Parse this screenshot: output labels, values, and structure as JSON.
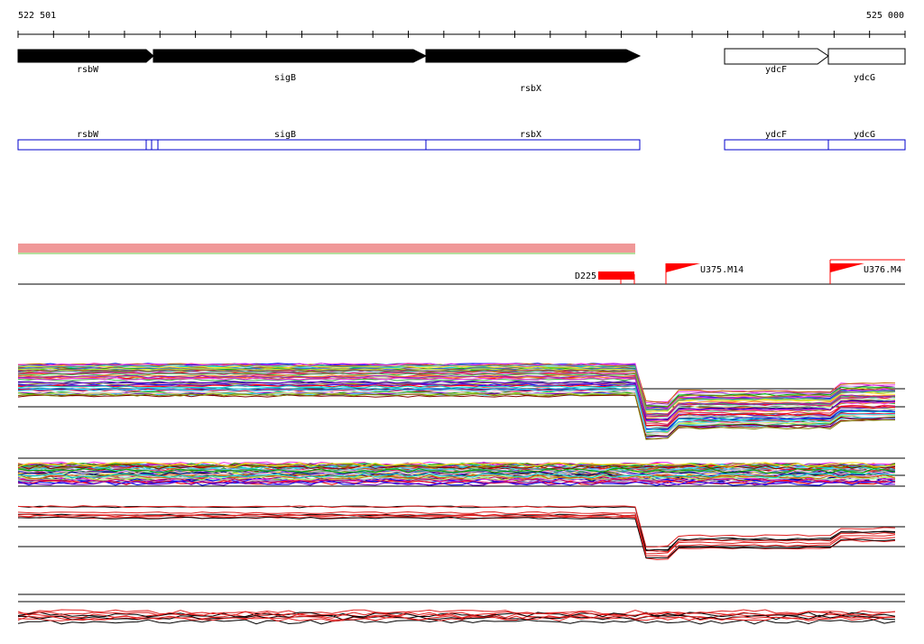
{
  "coordinates": {
    "start": "522 501",
    "end": "525 000"
  },
  "genes": [
    {
      "name": "rsbW",
      "strand": "+",
      "color": "#000000"
    },
    {
      "name": "sigB",
      "strand": "+",
      "color": "#000000"
    },
    {
      "name": "rsbX",
      "strand": "+",
      "color": "#000000"
    },
    {
      "name": "ydcF",
      "strand": "+",
      "color": "#ffffff"
    },
    {
      "name": "ydcG",
      "strand": "+",
      "color": "#ffffff"
    }
  ],
  "features": [
    {
      "name": "rsbW"
    },
    {
      "name": "sigB"
    },
    {
      "name": "rsbX"
    },
    {
      "name": "ydcF"
    },
    {
      "name": "ydcG"
    }
  ],
  "regulatory": [
    {
      "name": "D225",
      "kind": "downshift"
    },
    {
      "name": "U375.M14",
      "kind": "upshift"
    },
    {
      "name": "U376.M4",
      "kind": "upshift"
    }
  ],
  "colors": {
    "feature_outline": "#0000cc",
    "marker": "#ff0000",
    "axis": "#000000"
  }
}
